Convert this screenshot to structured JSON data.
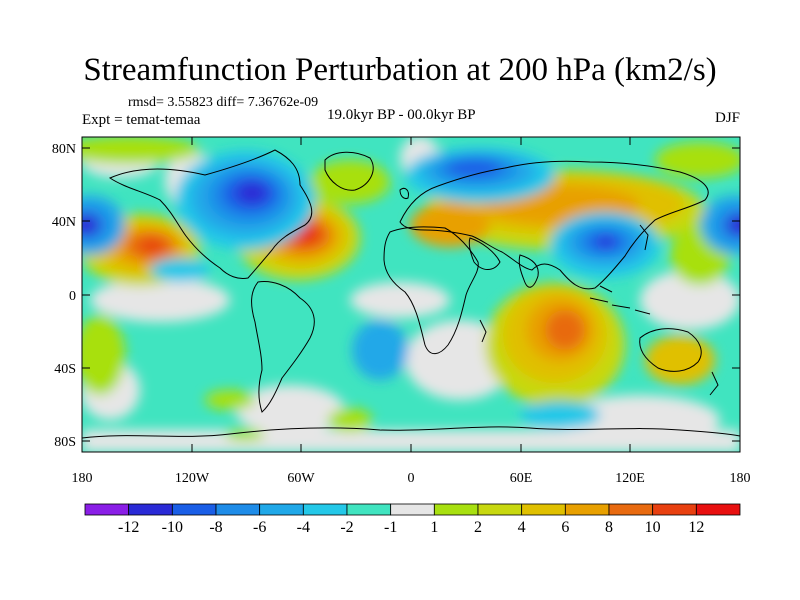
{
  "header": {
    "title": "Streamfunction Perturbation at 200 hPa (km2/s)",
    "stats": "rmsd= 3.55823 diff= 7.36762e-09",
    "experiment": "Expt = temat-temaa",
    "period": "19.0kyr BP - 00.0kyr BP",
    "season": "DJF"
  },
  "map": {
    "y_ticks": [
      "80N",
      "40N",
      "0",
      "40S",
      "80S"
    ],
    "x_ticks": [
      "180",
      "120W",
      "60W",
      "0",
      "60E",
      "120E",
      "180"
    ]
  },
  "colorbar": {
    "colors": [
      "#8a1ee6",
      "#2a2ad6",
      "#1a5ee6",
      "#1e8ce8",
      "#20a8e8",
      "#24c8e8",
      "#40e4c0",
      "#e6e6e6",
      "#a8e010",
      "#c8d810",
      "#e0c000",
      "#e8a000",
      "#e86a10",
      "#e84010",
      "#e81010"
    ],
    "labels": [
      "-12",
      "-10",
      "-8",
      "-6",
      "-4",
      "-2",
      "-1",
      "1",
      "2",
      "4",
      "6",
      "8",
      "10",
      "12"
    ]
  }
}
